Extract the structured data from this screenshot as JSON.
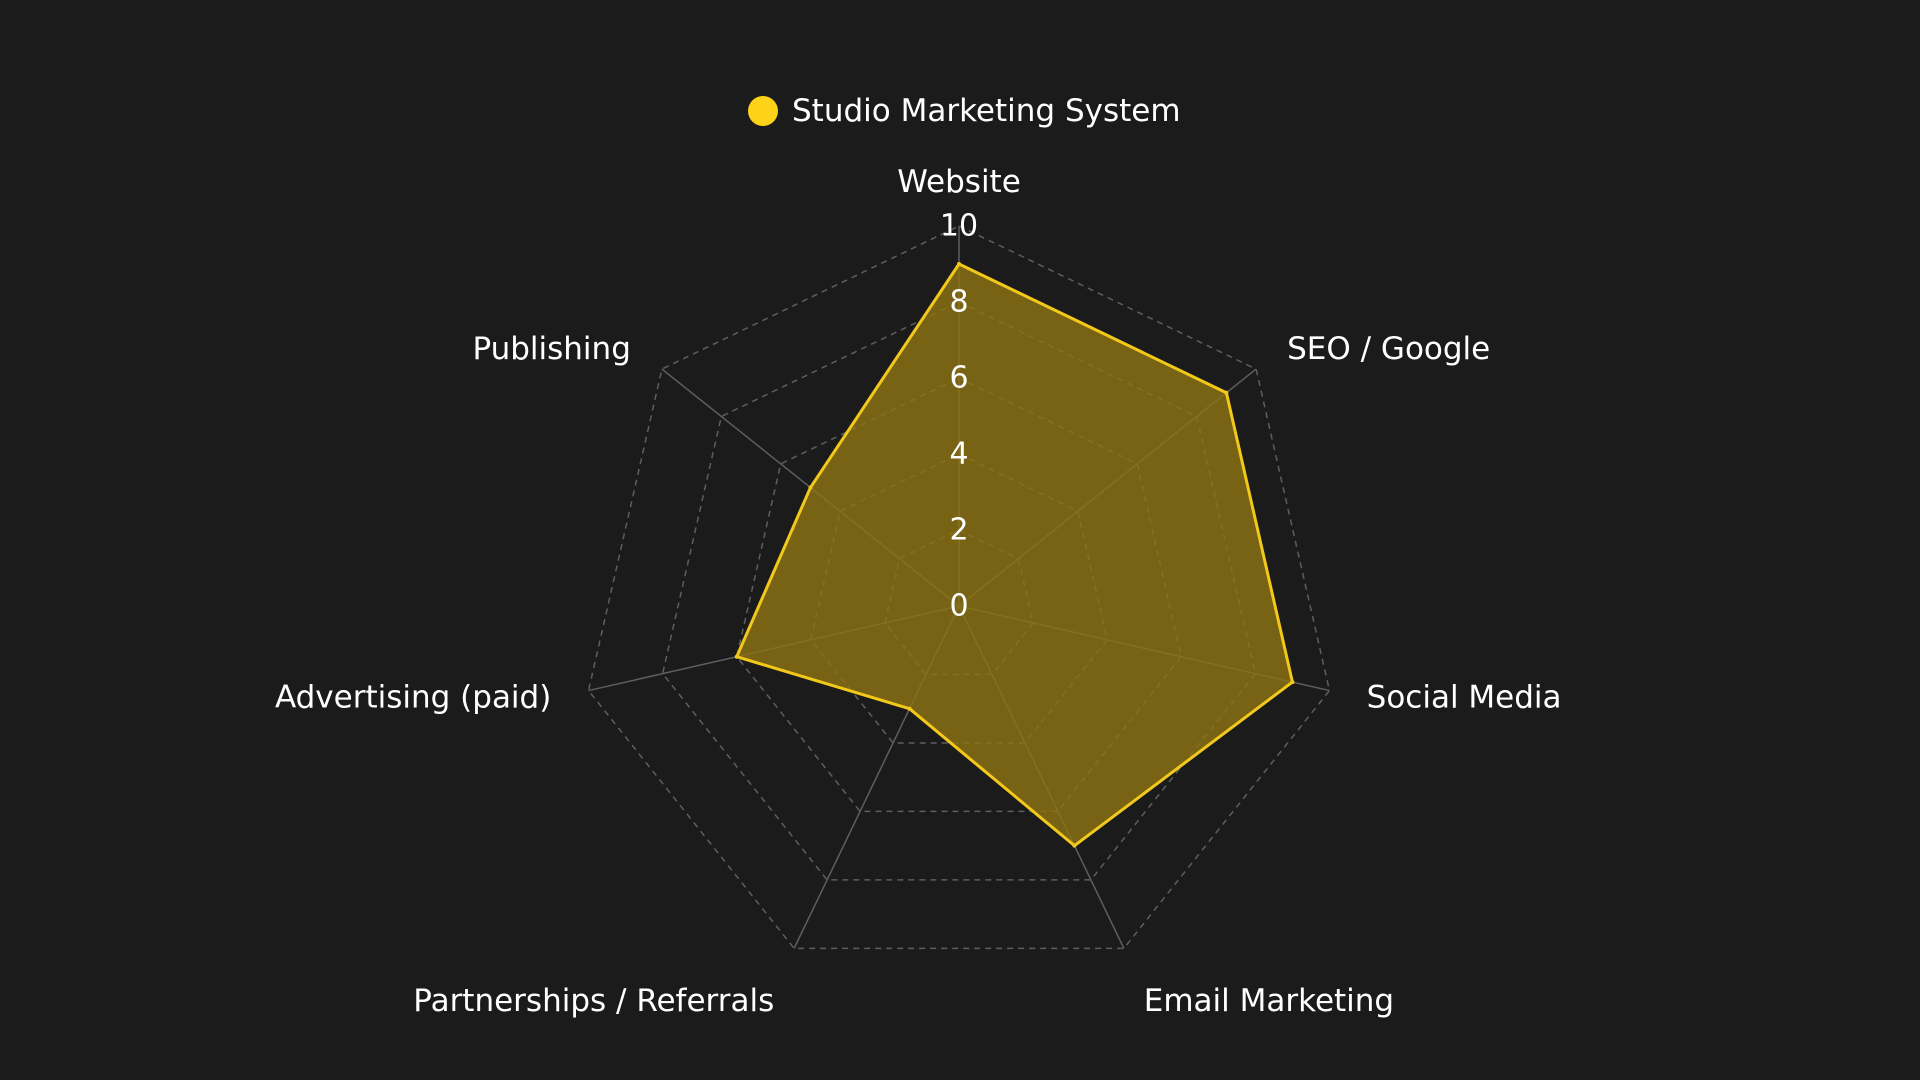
{
  "chart_data": {
    "type": "radar",
    "legend": {
      "position": "top-center",
      "series_name": "Studio Marketing System"
    },
    "categories": [
      "Website",
      "SEO / Google",
      "Social Media",
      "Email Marketing",
      "Partnerships / Referrals",
      "Advertising (paid)",
      "Publishing"
    ],
    "series": [
      {
        "name": "Studio Marketing System",
        "values": [
          9,
          9,
          9,
          7,
          3,
          6,
          5
        ]
      }
    ],
    "radial_ticks": [
      "0",
      "2",
      "4",
      "6",
      "8",
      "10"
    ],
    "range": [
      0,
      10
    ],
    "grid": true,
    "grid_style": "dashed"
  },
  "colors": {
    "background": "#1b1b1b",
    "series_line": "#f2c81a",
    "series_fill": "#8c7412",
    "grid": "#5e5e5e",
    "text": "#ffffff",
    "legend_dot": "#ffd21a"
  }
}
